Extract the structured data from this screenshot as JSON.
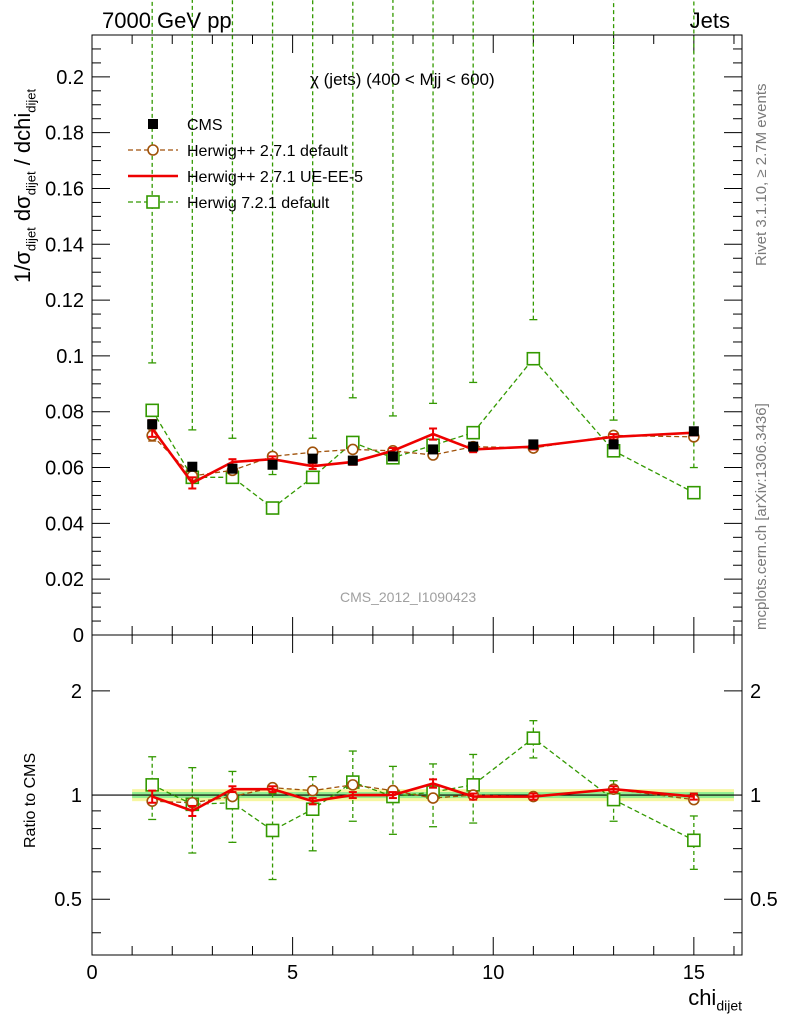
{
  "header": {
    "left": "7000 GeV pp",
    "right": "Jets"
  },
  "side_labels": {
    "rivet": "Rivet 3.1.10, ≥ 2.7M events",
    "mcplots": "mcplots.cern.ch [arXiv:1306.3436]"
  },
  "colors": {
    "cms": "#000000",
    "herwigpp_default": "#a0520a",
    "herwigpp_ueee5": "#ee0000",
    "herwig7": "#339900",
    "band_yellow": "#f6f6a0",
    "band_green": "#90ee90"
  },
  "chart_data": [
    {
      "type": "scatter",
      "title": "χ (jets) (400 < Mjj <  600)",
      "watermark": "CMS_2012_I1090423",
      "ylabel": "1/σdijet dσdijet / dchidijet",
      "xlim": [
        0,
        16.2
      ],
      "ylim": [
        0,
        0.215
      ],
      "grid": false,
      "legend_position": "top-left",
      "x": [
        1.5,
        2.5,
        3.5,
        4.5,
        5.5,
        6.5,
        7.5,
        8.5,
        9.5,
        11,
        13,
        15
      ],
      "y_ticks": [
        "0",
        "0.02",
        "0.04",
        "0.06",
        "0.08",
        "0.1",
        "0.12",
        "0.14",
        "0.16",
        "0.18",
        "0.2"
      ],
      "series": [
        {
          "key": "cms",
          "name": "CMS",
          "style": "square-marker",
          "values": [
            0.0755,
            0.0603,
            0.0596,
            0.061,
            0.0632,
            0.0625,
            0.064,
            0.0665,
            0.0675,
            0.0683,
            0.0683,
            0.073
          ]
        },
        {
          "key": "herwigpp_default",
          "name": "Herwig++ 2.7.1 default",
          "style": "dashed-open-circle",
          "values": [
            0.0715,
            0.057,
            0.059,
            0.064,
            0.0655,
            0.0665,
            0.066,
            0.0645,
            0.0675,
            0.067,
            0.0715,
            0.071
          ],
          "errors": [
            0.002,
            0.001,
            0.001,
            0.001,
            0.001,
            0.001,
            0.001,
            0.001,
            0.001,
            0.001,
            0.001,
            0.001
          ]
        },
        {
          "key": "herwigpp_ueee5",
          "name": "Herwig++ 2.7.1 UE-EE-5",
          "style": "solid-line",
          "values": [
            0.074,
            0.0545,
            0.062,
            0.063,
            0.0605,
            0.062,
            0.066,
            0.072,
            0.0665,
            0.0675,
            0.071,
            0.0725
          ],
          "errors": [
            0.003,
            0.002,
            0.001,
            0.001,
            0.001,
            0.001,
            0.001,
            0.002,
            0.001,
            0.001,
            0.001,
            0.001
          ]
        },
        {
          "key": "herwig7",
          "name": "Herwig 7.2.1 default",
          "style": "dashed-open-square",
          "values": [
            0.0805,
            0.0565,
            0.0565,
            0.0455,
            0.0565,
            0.069,
            0.0635,
            0.068,
            0.0725,
            0.099,
            0.066,
            0.051
          ],
          "errors": [
            0.017,
            0.017,
            0.014,
            0.012,
            0.014,
            0.016,
            0.015,
            0.015,
            0.018,
            0.014,
            0.011,
            0.009
          ]
        }
      ]
    },
    {
      "type": "scatter",
      "ylabel": "Ratio to CMS",
      "xlabel": "chidijet",
      "xlim": [
        0,
        16.2
      ],
      "ylim": [
        0.345,
        2.9
      ],
      "log_y": true,
      "x_ticks": [
        "0",
        "5",
        "10",
        "15"
      ],
      "y_ticks": [
        "0.5",
        "1",
        "2"
      ],
      "reference_line": 1,
      "bands": [
        {
          "color": "yellow",
          "half_width": 0.04
        },
        {
          "color": "green",
          "half_width": 0.02
        }
      ],
      "x": [
        1.5,
        2.5,
        3.5,
        4.5,
        5.5,
        6.5,
        7.5,
        8.5,
        9.5,
        11,
        13,
        15
      ],
      "series": [
        {
          "key": "herwigpp_default",
          "name": "Herwig++ 2.7.1 default",
          "values": [
            0.96,
            0.95,
            0.99,
            1.05,
            1.03,
            1.07,
            1.03,
            0.98,
            1.0,
            0.99,
            1.04,
            0.97
          ],
          "errors": [
            0.02,
            0.02,
            0.02,
            0.02,
            0.02,
            0.02,
            0.02,
            0.02,
            0.02,
            0.02,
            0.02,
            0.02
          ]
        },
        {
          "key": "herwigpp_ueee5",
          "name": "Herwig++ 2.7.1 UE-EE-5",
          "values": [
            0.99,
            0.9,
            1.04,
            1.04,
            0.96,
            1.0,
            1.0,
            1.08,
            0.99,
            0.99,
            1.04,
            0.99
          ],
          "errors": [
            0.04,
            0.03,
            0.02,
            0.02,
            0.02,
            0.02,
            0.02,
            0.03,
            0.02,
            0.02,
            0.02,
            0.02
          ]
        },
        {
          "key": "herwig7",
          "name": "Herwig 7.2.1 default",
          "values": [
            1.07,
            0.94,
            0.95,
            0.79,
            0.91,
            1.09,
            0.99,
            1.02,
            1.07,
            1.46,
            0.97,
            0.74
          ],
          "errors": [
            0.22,
            0.26,
            0.22,
            0.22,
            0.22,
            0.25,
            0.22,
            0.21,
            0.24,
            0.18,
            0.13,
            0.13
          ]
        }
      ]
    }
  ]
}
